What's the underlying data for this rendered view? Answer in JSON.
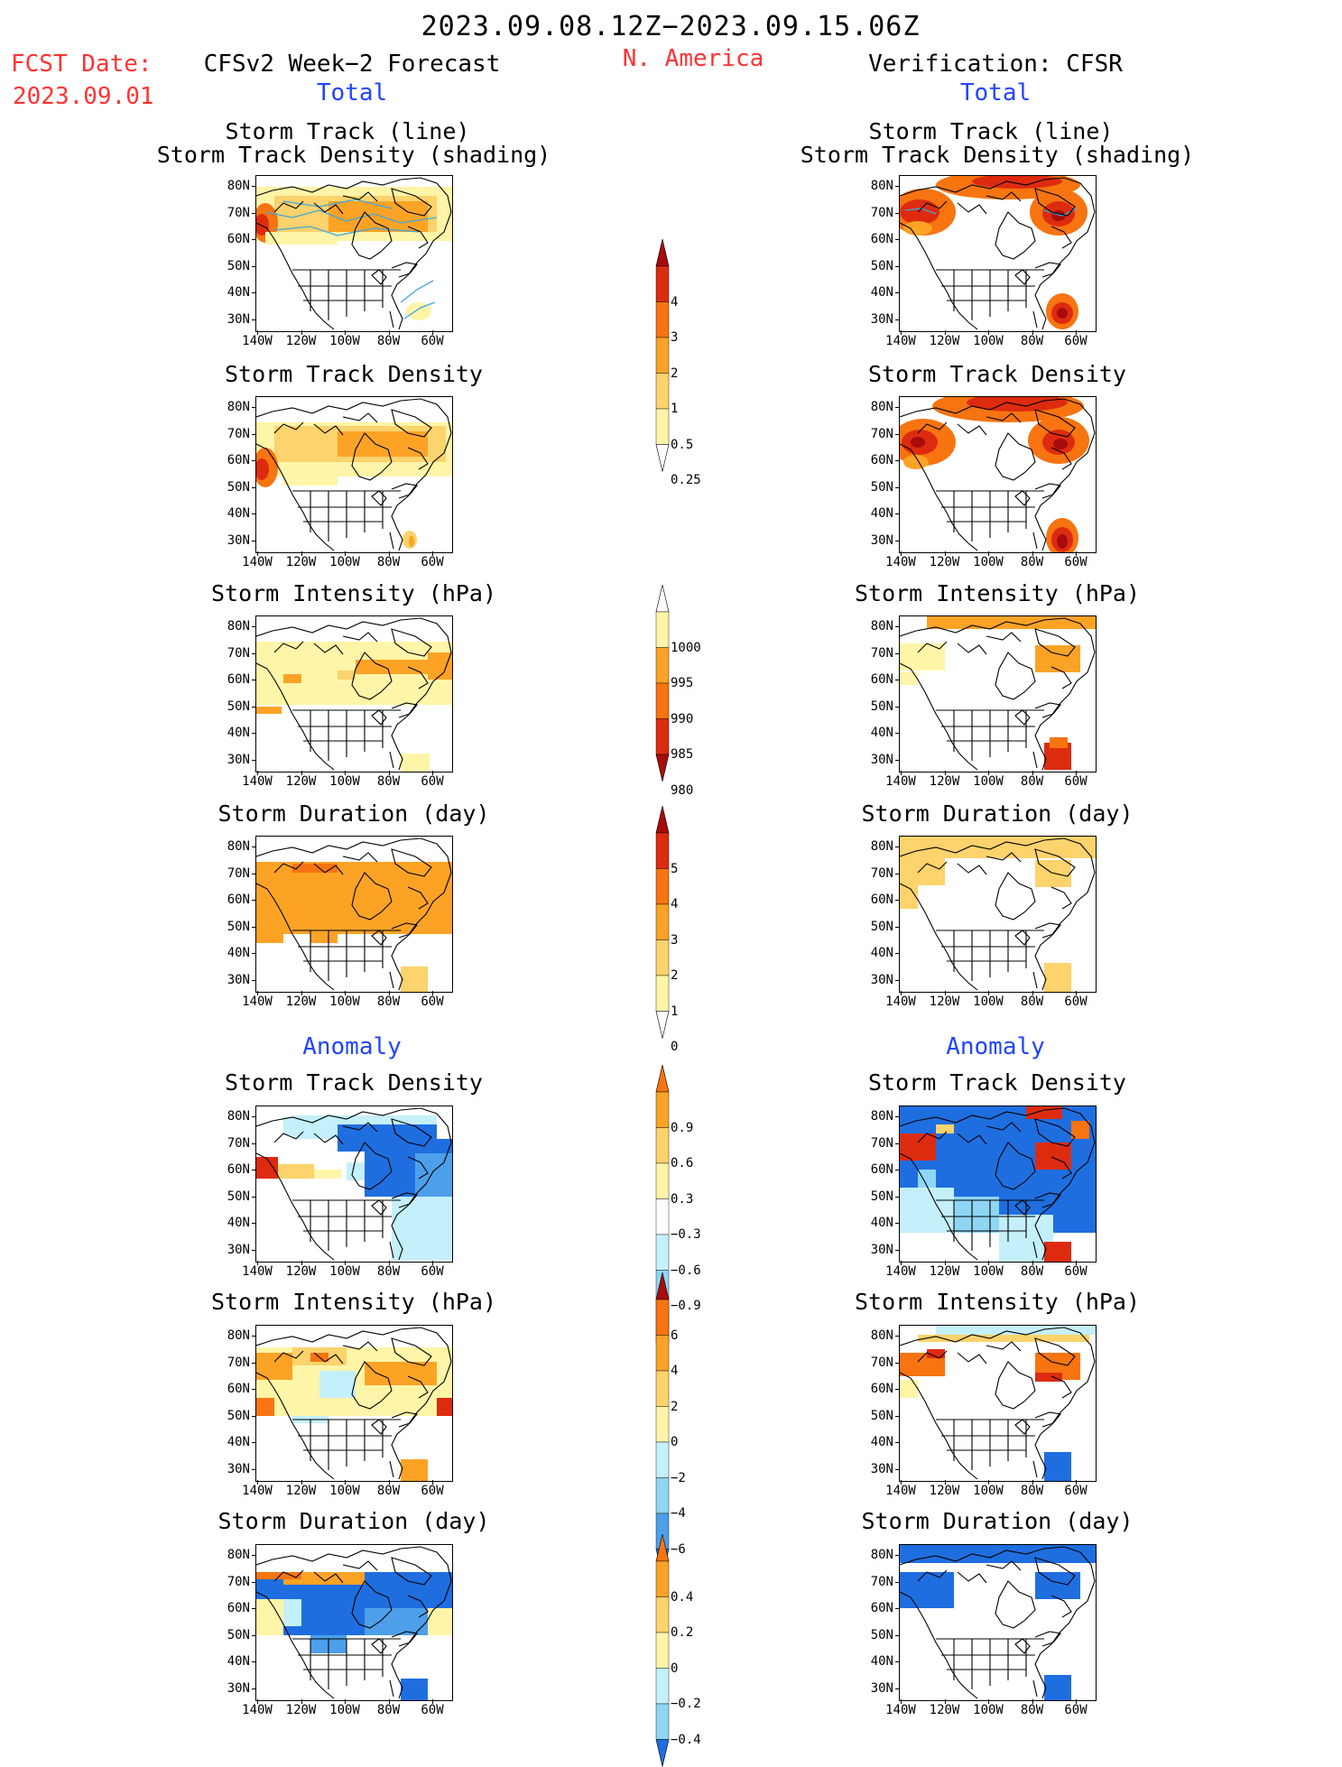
{
  "header": {
    "period": "2023.09.08.12Z−2023.09.15.06Z",
    "fcst_label": "FCST Date:",
    "fcst_date": "2023.09.01",
    "model": "CFSv2 Week−2 Forecast",
    "region": "N. America",
    "verification": "Verification: CFSR",
    "total_left": "Total",
    "total_right": "Total",
    "anomaly_left": "Anomaly",
    "anomaly_right": "Anomaly"
  },
  "axes": {
    "lat_ticks": [
      "80N",
      "70N",
      "60N",
      "50N",
      "40N",
      "30N"
    ],
    "lon_ticks": [
      "140W",
      "120W",
      "100W",
      "80W",
      "60W"
    ]
  },
  "panel_titles": {
    "track_line": "Storm Track (line)",
    "track_shading": "Storm Track Density (shading)",
    "density": "Storm Track Density",
    "intensity": "Storm Intensity (hPa)",
    "duration": "Storm Duration (day)"
  },
  "colors": {
    "pos1": "#fff5a8",
    "pos2": "#fcd36c",
    "pos3": "#fca326",
    "pos4": "#f77411",
    "pos5": "#dd2b10",
    "pos6": "#a80b0b",
    "neg1": "#c4f0fb",
    "neg2": "#8fd6f4",
    "neg3": "#4d9fea",
    "neg4": "#1f6ee0",
    "track": "#3fa6dd"
  },
  "chart_data": [
    {
      "type": "heatmap",
      "id": "fc-track",
      "title": "Storm Track (line) / Storm Track Density (shading)",
      "source": "CFSv2 Week-2 Forecast",
      "scale": "total-density"
    },
    {
      "type": "heatmap",
      "id": "vf-track",
      "title": "Storm Track (line) / Storm Track Density (shading)",
      "source": "CFSR",
      "scale": "total-density"
    },
    {
      "type": "heatmap",
      "id": "fc-density",
      "title": "Storm Track Density",
      "source": "CFSv2 Week-2 Forecast",
      "scale": "total-density"
    },
    {
      "type": "heatmap",
      "id": "vf-density",
      "title": "Storm Track Density",
      "source": "CFSR",
      "scale": "total-density"
    },
    {
      "type": "heatmap",
      "id": "fc-intensity",
      "title": "Storm Intensity (hPa)",
      "source": "CFSv2 Week-2 Forecast",
      "scale": "total-intensity"
    },
    {
      "type": "heatmap",
      "id": "vf-intensity",
      "title": "Storm Intensity (hPa)",
      "source": "CFSR",
      "scale": "total-intensity"
    },
    {
      "type": "heatmap",
      "id": "fc-duration",
      "title": "Storm Duration (day)",
      "source": "CFSv2 Week-2 Forecast",
      "scale": "total-duration"
    },
    {
      "type": "heatmap",
      "id": "vf-duration",
      "title": "Storm Duration (day)",
      "source": "CFSR",
      "scale": "total-duration"
    },
    {
      "type": "heatmap",
      "id": "fc-anom-density",
      "title": "Storm Track Density",
      "source": "CFSv2 Week-2 Forecast",
      "scale": "anom-density"
    },
    {
      "type": "heatmap",
      "id": "vf-anom-density",
      "title": "Storm Track Density",
      "source": "CFSR",
      "scale": "anom-density"
    },
    {
      "type": "heatmap",
      "id": "fc-anom-intensity",
      "title": "Storm Intensity (hPa)",
      "source": "CFSv2 Week-2 Forecast",
      "scale": "anom-intensity"
    },
    {
      "type": "heatmap",
      "id": "vf-anom-intensity",
      "title": "Storm Intensity (hPa)",
      "source": "CFSR",
      "scale": "anom-intensity"
    },
    {
      "type": "heatmap",
      "id": "fc-anom-duration",
      "title": "Storm Duration (day)",
      "source": "CFSv2 Week-2 Forecast",
      "scale": "anom-duration"
    },
    {
      "type": "heatmap",
      "id": "vf-anom-duration",
      "title": "Storm Duration (day)",
      "source": "CFSR",
      "scale": "anom-duration"
    }
  ],
  "colorbars": {
    "total_density": [
      "4",
      "3",
      "2",
      "1",
      "0.5",
      "0.25"
    ],
    "total_intensity": [
      "1000",
      "995",
      "990",
      "985",
      "980"
    ],
    "total_duration": [
      "5",
      "4",
      "3",
      "2",
      "1",
      "0"
    ],
    "anom_density": [
      "0.9",
      "0.6",
      "0.3",
      "−0.3",
      "−0.6",
      "−0.9"
    ],
    "anom_intensity": [
      "6",
      "4",
      "2",
      "0",
      "−2",
      "−4",
      "−6"
    ],
    "anom_duration": [
      "0.4",
      "0.2",
      "0",
      "−0.2",
      "−0.4"
    ]
  }
}
